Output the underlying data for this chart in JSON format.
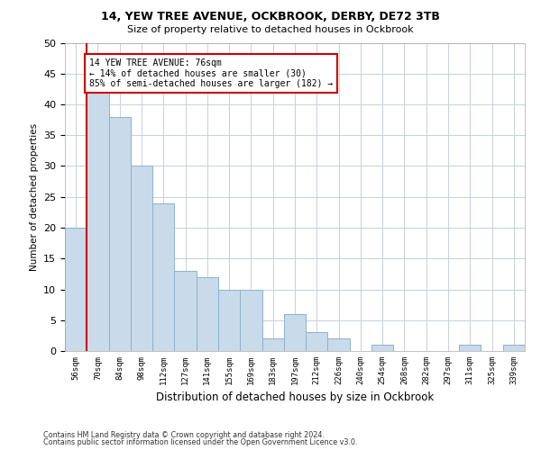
{
  "title1": "14, YEW TREE AVENUE, OCKBROOK, DERBY, DE72 3TB",
  "title2": "Size of property relative to detached houses in Ockbrook",
  "xlabel": "Distribution of detached houses by size in Ockbrook",
  "ylabel": "Number of detached properties",
  "bar_values": [
    20,
    42,
    38,
    30,
    24,
    13,
    12,
    10,
    10,
    2,
    6,
    3,
    2,
    0,
    1,
    0,
    0,
    0,
    1,
    0,
    1
  ],
  "categories": [
    "56sqm",
    "70sqm",
    "84sqm",
    "98sqm",
    "112sqm",
    "127sqm",
    "141sqm",
    "155sqm",
    "169sqm",
    "183sqm",
    "197sqm",
    "212sqm",
    "226sqm",
    "240sqm",
    "254sqm",
    "268sqm",
    "282sqm",
    "297sqm",
    "311sqm",
    "325sqm",
    "339sqm"
  ],
  "bar_color": "#c9daea",
  "bar_edge_color": "#8ab4cc",
  "grid_color": "#c8d0dc",
  "vline_color": "#cc0000",
  "annotation_title": "14 YEW TREE AVENUE: 76sqm",
  "annotation_line1": "← 14% of detached houses are smaller (30)",
  "annotation_line2": "85% of semi-detached houses are larger (182) →",
  "annotation_box_color": "#cc0000",
  "ylim": [
    0,
    50
  ],
  "yticks": [
    0,
    5,
    10,
    15,
    20,
    25,
    30,
    35,
    40,
    45,
    50
  ],
  "footnote1": "Contains HM Land Registry data © Crown copyright and database right 2024.",
  "footnote2": "Contains public sector information licensed under the Open Government Licence v3.0."
}
